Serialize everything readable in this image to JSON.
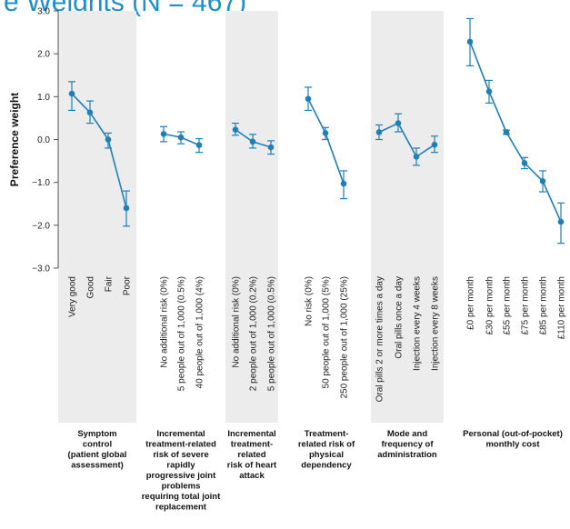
{
  "title_fragment": "e Weights (N = 467)",
  "accent_color": "#1f7fb6",
  "band_color": "#ececec",
  "chart_data": {
    "type": "line",
    "ylabel": "Preference weight",
    "ylim": [
      -3.0,
      3.0
    ],
    "yticks": [
      "3.0",
      "2.0",
      "1.0",
      "0.0",
      "−1.0",
      "−2.0",
      "−3.0"
    ],
    "grid": false,
    "groups": [
      {
        "label": [
          "Symptom",
          "control",
          "(patient global",
          "assessment)"
        ],
        "shaded": true,
        "points": [
          {
            "category": "Very good",
            "value": 1.07,
            "low": 0.68,
            "high": 1.35
          },
          {
            "category": "Good",
            "value": 0.63,
            "low": 0.38,
            "high": 0.9
          },
          {
            "category": "Fair",
            "value": 0.0,
            "low": -0.2,
            "high": 0.15
          },
          {
            "category": "Poor",
            "value": -1.6,
            "low": -2.02,
            "high": -1.2
          }
        ]
      },
      {
        "label": [
          "Incremental",
          "treatment-related",
          "risk of severe",
          "rapidly",
          "progressive joint",
          "problems",
          "requiring total joint",
          "replacement"
        ],
        "shaded": false,
        "points": [
          {
            "category": "No additional risk (0%)",
            "value": 0.13,
            "low": -0.05,
            "high": 0.3
          },
          {
            "category": "5 people out of 1,000 (0.5%)",
            "value": 0.05,
            "low": -0.1,
            "high": 0.18
          },
          {
            "category": "40 people out of 1,000 (4%)",
            "value": -0.13,
            "low": -0.3,
            "high": 0.02
          }
        ]
      },
      {
        "label": [
          "Incremental",
          "treatment-",
          "related",
          "risk of heart",
          "attack"
        ],
        "shaded": true,
        "points": [
          {
            "category": "No additional risk (0%)",
            "value": 0.23,
            "low": 0.1,
            "high": 0.38
          },
          {
            "category": "2 people out of 1,000 (0.2%)",
            "value": -0.05,
            "low": -0.2,
            "high": 0.12
          },
          {
            "category": "5 people out of 1,000 (0.5%)",
            "value": -0.18,
            "low": -0.34,
            "high": -0.03
          }
        ]
      },
      {
        "label": [
          "Treatment-",
          "related risk of",
          "physical",
          "dependency"
        ],
        "shaded": false,
        "points": [
          {
            "category": "No risk (0%)",
            "value": 0.95,
            "low": 0.68,
            "high": 1.22
          },
          {
            "category": "50 people out of 1,000 (5%)",
            "value": 0.15,
            "low": 0.0,
            "high": 0.28
          },
          {
            "category": "250 people out of 1,000 (25%)",
            "value": -1.03,
            "low": -1.38,
            "high": -0.73
          }
        ]
      },
      {
        "label": [
          "Mode and",
          "frequency of",
          "administration"
        ],
        "shaded": true,
        "points": [
          {
            "category": "Oral pills 2 or more times a day",
            "value": 0.17,
            "low": 0.0,
            "high": 0.34
          },
          {
            "category": "Oral pills once a day",
            "value": 0.38,
            "low": 0.18,
            "high": 0.6
          },
          {
            "category": "Injection every 4 weeks",
            "value": -0.4,
            "low": -0.6,
            "high": -0.2
          },
          {
            "category": "Injection every 8 weeks",
            "value": -0.12,
            "low": -0.3,
            "high": 0.08
          }
        ]
      },
      {
        "label": [
          "Personal (out-of-pocket)",
          "monthly cost"
        ],
        "shaded": false,
        "points": [
          {
            "category": "£0 per month",
            "value": 2.28,
            "low": 1.72,
            "high": 2.82
          },
          {
            "category": "£30 per month",
            "value": 1.12,
            "low": 0.85,
            "high": 1.38
          },
          {
            "category": "£55 per month",
            "value": 0.17,
            "low": 0.12,
            "high": 0.22
          },
          {
            "category": "£75 per month",
            "value": -0.55,
            "low": -0.68,
            "high": -0.42
          },
          {
            "category": "£85 per month",
            "value": -0.97,
            "low": -1.22,
            "high": -0.73
          },
          {
            "category": "£110 per month",
            "value": -1.92,
            "low": -2.42,
            "high": -1.48
          }
        ]
      }
    ]
  }
}
